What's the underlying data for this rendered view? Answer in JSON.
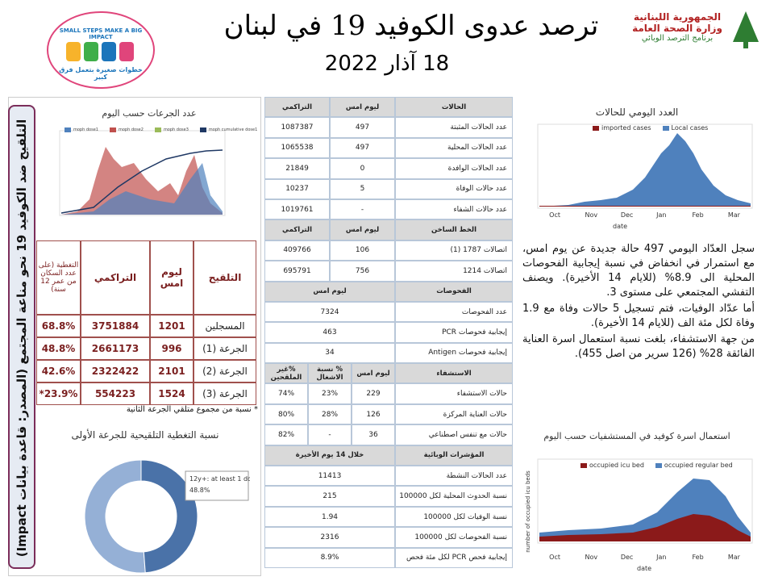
{
  "header": {
    "title": "ترصد عدوى الكوفيد 19 في لبنان",
    "date": "18 آذار 2022",
    "logo_left": {
      "slogan_en": "SMALL STEPS MAKE A BIG IMPACT",
      "slogan_ar": "خطوات صغيرة بتعمل فرق كبير"
    },
    "logo_right": {
      "line1": "الجمهورية اللبنانية",
      "line2": "وزارة الصحة العامة",
      "line3": "برنامج الترصد الوبائي"
    }
  },
  "vaccination": {
    "side_title": "التلقيح ضد الكوفيد 19 نحو مناعة المجتمع (المصدر: قاعدة بيانات Impact)",
    "doses_chart": {
      "title": "عدد الجرعات حسب اليوم",
      "legend": [
        "moph dose1",
        "moph dose2",
        "moph dose3",
        "moph cumulative dose1"
      ]
    },
    "table": {
      "columns": [
        "التلقيح",
        "ليوم امس",
        "التراكمي",
        "التغطية (على عدد السكان من عمر 12 سنة)"
      ],
      "rows": [
        [
          "المسجلين",
          "1201",
          "3751884",
          "68.8%"
        ],
        [
          "الجرعة (1)",
          "996",
          "2661173",
          "48.8%"
        ],
        [
          "الجرعة (2)",
          "2101",
          "2322422",
          "42.6%"
        ],
        [
          "الجرعة (3)",
          "1524",
          "554223",
          "23.9%*"
        ]
      ]
    },
    "note": "* نسبة من مجموع متلقي الجرعة الثانية",
    "coverage_chart": {
      "type": "pie",
      "title": "نسبة التغطية التلقيحية للجرعة الأولى",
      "label": "12y+: at least 1 dose",
      "values": [
        48.8
      ],
      "value_labels": [
        "48.8%"
      ]
    }
  },
  "cases_table": {
    "sections": [
      {
        "columns": [
          "الحالات",
          "ليوم امس",
          "التراكمي"
        ],
        "rows": [
          [
            "عدد الحالات المثبتة",
            "497",
            "1087387"
          ],
          [
            "عدد الحالات المحلية",
            "497",
            "1065538"
          ],
          [
            "عدد الحالات الوافدة",
            "0",
            "21849"
          ],
          [
            "عدد حالات الوفاة",
            "5",
            "10237"
          ],
          [
            "عدد حالات الشفاء",
            "-",
            "1019761"
          ]
        ]
      },
      {
        "columns": [
          "الخط الساخن",
          "ليوم امس",
          "التراكمي"
        ],
        "rows": [
          [
            "اتصالات 1787 (1)",
            "106",
            "409766"
          ],
          [
            "اتصالات 1214",
            "756",
            "695791"
          ]
        ]
      },
      {
        "columns": [
          "الفحوصات",
          "ليوم امس"
        ],
        "rows": [
          [
            "عدد الفحوصات",
            "7324"
          ],
          [
            "إيجابية فحوصات PCR",
            "463"
          ],
          [
            "إيجابية فحوصات Antigen",
            "34"
          ]
        ]
      },
      {
        "columns": [
          "الاستشفاء",
          "ليوم امس",
          "% نسبة الاشغال",
          "%غير الملقحين"
        ],
        "rows": [
          [
            "حالات الاستشفاء",
            "229",
            "23%",
            "74%"
          ],
          [
            "حالات العناية المركزة",
            "126",
            "28%",
            "80%"
          ],
          [
            "حالات مع تنفس اصطناعي",
            "36",
            "-",
            "82%"
          ]
        ]
      },
      {
        "columns": [
          "المؤشرات الوبائية",
          "خلال 14 يوم الأخيرة"
        ],
        "rows": [
          [
            "عدد الحالات النشطة",
            "11413"
          ],
          [
            "نسبة الحدوث المحلية لكل 100000",
            "215"
          ],
          [
            "نسبة الوفيات لكل 100000",
            "1.94"
          ],
          [
            "نسبة الفحوصات لكل 100000",
            "2316"
          ],
          [
            "إيجابية فحص PCR لكل مئة فحص",
            "8.9%"
          ]
        ]
      }
    ]
  },
  "daily_cases_chart": {
    "title": "العدد اليومي للحالات",
    "legend": [
      "imported cases",
      "Local cases"
    ],
    "x_label": "date",
    "months": [
      "Oct",
      "Nov",
      "Dec",
      "Jan",
      "Feb",
      "Mar"
    ]
  },
  "summary": [
    "سجل العدّاد اليومي 497 حالة جديدة عن يوم امس، مع استمرار في انخفاض في نسبة إيجابية الفحوصات المحلية الى 8.9% (للايام 14 الأخيرة). ويصنف التفشي المجتمعي على مستوى 3.",
    "أما عدّاد الوفيات، فتم تسجيل 5 حالات وفاة مع 1.9 وفاة لكل مئة الف (للايام 14 الأخيرة).",
    "من جهة الاستشفاء، بلغت نسبة استعمال اسرة العناية الفائقة 28% (126 سرير من اصل 455)."
  ],
  "beds_chart": {
    "title": "استعمال اسرة كوفيد في المستشفيات حسب اليوم",
    "legend": [
      "occupied icu bed",
      "occupied regular bed"
    ],
    "y_label": "number of occupied icu beds",
    "x_label": "date",
    "months": [
      "Oct",
      "Nov",
      "Dec",
      "Jan",
      "Feb",
      "Mar"
    ]
  }
}
